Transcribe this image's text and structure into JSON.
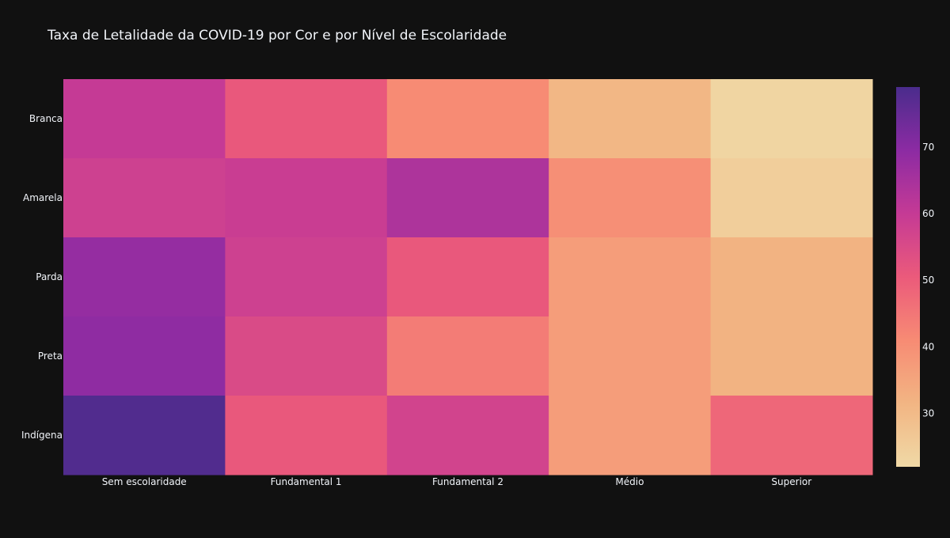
{
  "chart_data": {
    "type": "heatmap",
    "title": "Taxa de Letalidade da COVID-19 por Cor e por Nível de Escolaridade",
    "xlabel": "",
    "ylabel": "",
    "x": [
      "Sem escolaridade",
      "Fundamental 1",
      "Fundamental 2",
      "Médio",
      "Superior"
    ],
    "y": [
      "Branca",
      "Amarela",
      "Parda",
      "Preta",
      "Indígena"
    ],
    "z": [
      [
        60,
        51,
        41,
        31,
        23
      ],
      [
        58,
        59,
        64,
        40,
        25
      ],
      [
        68,
        58,
        51,
        37,
        32
      ],
      [
        69,
        55,
        44,
        37,
        32
      ],
      [
        78,
        51,
        57,
        37,
        48
      ]
    ],
    "colorscale": [
      "#f0d9a6",
      "#f2b583",
      "#f78b74",
      "#eb5a7b",
      "#c53a95",
      "#8c2ba3",
      "#4a2c8c"
    ],
    "zmin": 22,
    "zmax": 79,
    "colorbar_ticks": [
      30,
      40,
      50,
      60,
      70
    ]
  }
}
